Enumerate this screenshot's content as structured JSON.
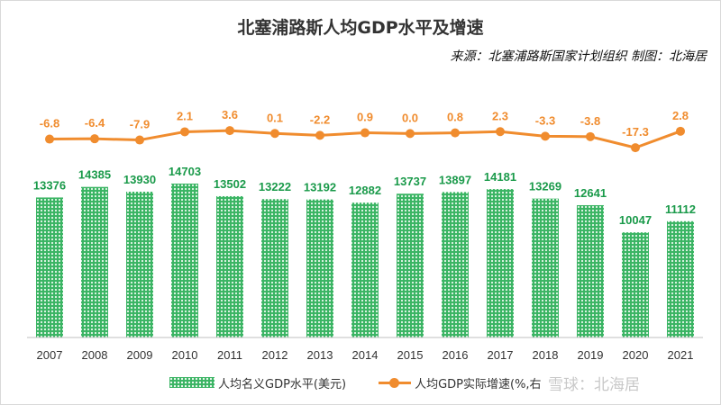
{
  "chart_data": {
    "type": "bar+line",
    "title": "北塞浦路斯人均GDP水平及增速",
    "subtitle": "来源：北塞浦路斯国家计划组织 制图：北海居",
    "categories": [
      "2007",
      "2008",
      "2009",
      "2010",
      "2011",
      "2012",
      "2013",
      "2014",
      "2015",
      "2016",
      "2017",
      "2018",
      "2019",
      "2020",
      "2021"
    ],
    "series": [
      {
        "name": "人均名义GDP水平(美元)",
        "type": "bar",
        "color": "#3ab463",
        "values": [
          13376,
          14385,
          13930,
          14703,
          13502,
          13222,
          13192,
          12882,
          13737,
          13897,
          14181,
          13269,
          12641,
          10047,
          11112
        ],
        "labels": [
          "13376",
          "14385",
          "13930",
          "14703",
          "13502",
          "13222",
          "13192",
          "12882",
          "13737",
          "13897",
          "14181",
          "13269",
          "12641",
          "10047",
          "11112"
        ]
      },
      {
        "name": "人均GDP实际增速(%,右",
        "type": "line",
        "color": "#f08c2e",
        "values": [
          -6.8,
          -6.4,
          -7.9,
          2.1,
          3.6,
          0.1,
          -2.2,
          0.9,
          0.0,
          0.8,
          2.3,
          -3.3,
          -3.8,
          -17.3,
          2.8
        ],
        "labels": [
          "-6.8",
          "-6.4",
          "-7.9",
          "2.1",
          "3.6",
          "0.1",
          "-2.2",
          "0.9",
          "0.0",
          "0.8",
          "2.3",
          "-3.3",
          "-3.8",
          "-17.3",
          "2.8"
        ]
      }
    ],
    "legend_position": "bottom",
    "grid": false
  },
  "watermark": "雪球：北海居"
}
